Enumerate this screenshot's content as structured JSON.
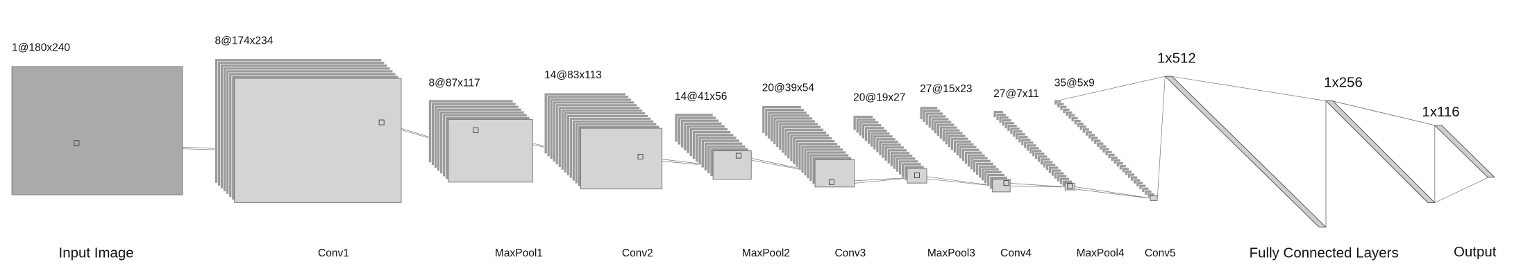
{
  "layers": [
    {
      "size": "1@180x240",
      "name": "Input Image"
    },
    {
      "size": "8@174x234",
      "name": "Conv1"
    },
    {
      "size": "8@87x117",
      "name": "MaxPool1"
    },
    {
      "size": "14@83x113",
      "name": "Conv2"
    },
    {
      "size": "14@41x56",
      "name": "MaxPool2"
    },
    {
      "size": "20@39x54",
      "name": "Conv3"
    },
    {
      "size": "20@19x27",
      "name": "MaxPool3"
    },
    {
      "size": "27@15x23",
      "name": "Conv4"
    },
    {
      "size": "27@7x11",
      "name": "MaxPool4"
    },
    {
      "size": "35@5x9",
      "name": "Conv5"
    }
  ],
  "fc_layers": [
    {
      "size": "1x512"
    },
    {
      "size": "1x256"
    },
    {
      "size": "1x116"
    }
  ],
  "fc_caption": "Fully Connected Layers",
  "output_caption": "Output"
}
